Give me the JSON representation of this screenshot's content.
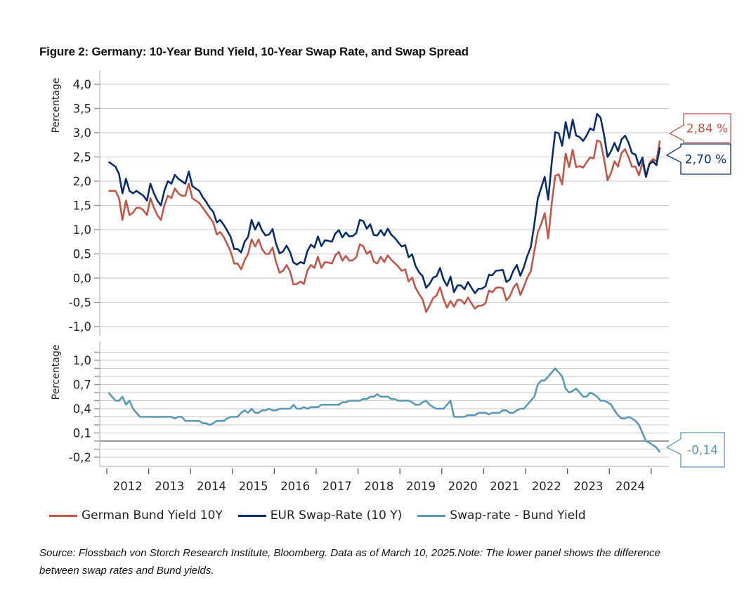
{
  "title": "Figure 2: Germany: 10-Year Bund Yield, 10-Year Swap Rate, and Swap Spread",
  "source": "Source: Flossbach von Storch Research Institute, Bloomberg. Data as of March 10, 2025.Note: The lower panel shows the difference between swap rates and Bund yields.",
  "colors": {
    "bund": "#c0574a",
    "swap": "#0b2d6a",
    "spread": "#5b98b2"
  },
  "chart_data": [
    {
      "type": "line",
      "panel": "upper",
      "ylabel": "Percentage",
      "ylim": [
        -1.0,
        4.0
      ],
      "yticks": [
        "4,0",
        "3,5",
        "3,0",
        "2,5",
        "2,0",
        "1,5",
        "1,0",
        "0,5",
        "0,0",
        "-0,5",
        "-1,0"
      ],
      "ytick_values": [
        4.0,
        3.5,
        3.0,
        2.5,
        2.0,
        1.5,
        1.0,
        0.5,
        0.0,
        -0.5,
        -1.0
      ],
      "grid": true,
      "x_start": "2012-01",
      "x_step": "month",
      "series": [
        {
          "name": "German Bund Yield 10Y",
          "color_key": "bund",
          "end_label": "2,84 %",
          "values": [
            1.8,
            1.8,
            1.8,
            1.65,
            1.2,
            1.6,
            1.3,
            1.35,
            1.45,
            1.45,
            1.4,
            1.3,
            1.65,
            1.45,
            1.3,
            1.2,
            1.5,
            1.7,
            1.65,
            1.85,
            1.75,
            1.7,
            1.7,
            1.95,
            1.65,
            1.6,
            1.55,
            1.45,
            1.35,
            1.25,
            1.15,
            0.9,
            0.95,
            0.85,
            0.7,
            0.55,
            0.3,
            0.3,
            0.18,
            0.37,
            0.5,
            0.8,
            0.65,
            0.8,
            0.6,
            0.5,
            0.5,
            0.63,
            0.33,
            0.11,
            0.15,
            0.27,
            0.14,
            -0.13,
            -0.12,
            -0.07,
            -0.12,
            0.16,
            0.27,
            0.21,
            0.44,
            0.21,
            0.33,
            0.32,
            0.3,
            0.47,
            0.54,
            0.36,
            0.46,
            0.36,
            0.37,
            0.43,
            0.7,
            0.66,
            0.5,
            0.56,
            0.34,
            0.3,
            0.44,
            0.33,
            0.47,
            0.38,
            0.31,
            0.24,
            0.15,
            0.18,
            -0.07,
            0.01,
            -0.2,
            -0.33,
            -0.44,
            -0.7,
            -0.57,
            -0.41,
            -0.36,
            -0.19,
            -0.43,
            -0.61,
            -0.47,
            -0.59,
            -0.45,
            -0.45,
            -0.53,
            -0.4,
            -0.52,
            -0.63,
            -0.57,
            -0.57,
            -0.52,
            -0.26,
            -0.29,
            -0.2,
            -0.19,
            -0.21,
            -0.46,
            -0.38,
            -0.2,
            -0.11,
            -0.35,
            -0.18,
            0.01,
            0.14,
            0.55,
            0.94,
            1.12,
            1.34,
            0.82,
            1.54,
            2.11,
            2.14,
            1.93,
            2.57,
            2.29,
            2.65,
            2.29,
            2.31,
            2.28,
            2.39,
            2.49,
            2.47,
            2.84,
            2.81,
            2.45,
            2.02,
            2.17,
            2.41,
            2.3,
            2.58,
            2.66,
            2.5,
            2.3,
            2.3,
            2.12,
            2.39,
            2.09,
            2.37,
            2.46,
            2.41,
            2.84
          ]
        },
        {
          "name": "EUR Swap-Rate (10 Y)",
          "color_key": "swap",
          "end_label": "2,70 %",
          "values": [
            2.4,
            2.35,
            2.3,
            2.15,
            1.75,
            2.05,
            1.8,
            1.75,
            1.8,
            1.75,
            1.7,
            1.6,
            1.95,
            1.75,
            1.6,
            1.5,
            1.8,
            2.0,
            1.95,
            2.13,
            2.05,
            2.0,
            1.95,
            2.2,
            1.9,
            1.85,
            1.8,
            1.67,
            1.57,
            1.45,
            1.37,
            1.15,
            1.2,
            1.1,
            0.98,
            0.85,
            0.6,
            0.6,
            0.53,
            0.75,
            0.85,
            1.2,
            1.0,
            1.15,
            0.98,
            0.88,
            0.9,
            1.01,
            0.71,
            0.51,
            0.55,
            0.67,
            0.54,
            0.32,
            0.28,
            0.33,
            0.3,
            0.56,
            0.69,
            0.63,
            0.86,
            0.66,
            0.78,
            0.77,
            0.75,
            0.92,
            0.99,
            0.84,
            0.94,
            0.86,
            0.87,
            0.93,
            1.2,
            1.18,
            1.02,
            1.11,
            0.89,
            0.88,
            0.99,
            0.88,
            1.02,
            0.9,
            0.83,
            0.74,
            0.65,
            0.68,
            0.43,
            0.49,
            0.25,
            0.12,
            0.04,
            -0.2,
            -0.12,
            0.01,
            0.04,
            0.21,
            -0.03,
            -0.16,
            0.03,
            -0.29,
            -0.15,
            -0.15,
            -0.23,
            -0.08,
            -0.2,
            -0.31,
            -0.22,
            -0.22,
            -0.17,
            0.07,
            0.06,
            0.15,
            0.16,
            0.17,
            -0.08,
            -0.03,
            0.15,
            0.27,
            0.05,
            0.22,
            0.46,
            0.64,
            1.1,
            1.64,
            1.87,
            2.09,
            1.62,
            2.39,
            3.01,
            2.99,
            2.73,
            3.22,
            2.89,
            3.27,
            2.94,
            2.91,
            2.83,
            2.94,
            3.09,
            3.05,
            3.39,
            3.31,
            2.95,
            2.5,
            2.62,
            2.79,
            2.62,
            2.86,
            2.94,
            2.8,
            2.58,
            2.55,
            2.32,
            2.49,
            2.09,
            2.35,
            2.41,
            2.33,
            2.7
          ]
        }
      ]
    },
    {
      "type": "line",
      "panel": "lower",
      "ylabel": "Percentage",
      "ylim": [
        -0.3,
        1.2
      ],
      "yticks": [
        "1,0",
        "0,7",
        "0,4",
        "0,1",
        "-0,2"
      ],
      "ytick_values": [
        1.0,
        0.7,
        0.4,
        0.1,
        -0.2
      ],
      "grid": true,
      "x_start": "2012-01",
      "x_step": "month",
      "series": [
        {
          "name": "Swap-rate - Bund Yield",
          "color_key": "spread",
          "end_label": "-0,14",
          "values": [
            0.6,
            0.55,
            0.5,
            0.5,
            0.55,
            0.45,
            0.5,
            0.4,
            0.35,
            0.3,
            0.3,
            0.3,
            0.3,
            0.3,
            0.3,
            0.3,
            0.3,
            0.3,
            0.3,
            0.28,
            0.3,
            0.3,
            0.25,
            0.25,
            0.25,
            0.25,
            0.25,
            0.22,
            0.22,
            0.2,
            0.22,
            0.25,
            0.25,
            0.25,
            0.28,
            0.3,
            0.3,
            0.3,
            0.35,
            0.38,
            0.35,
            0.4,
            0.35,
            0.35,
            0.38,
            0.38,
            0.4,
            0.38,
            0.38,
            0.4,
            0.4,
            0.4,
            0.4,
            0.45,
            0.4,
            0.4,
            0.42,
            0.4,
            0.42,
            0.42,
            0.42,
            0.45,
            0.45,
            0.45,
            0.45,
            0.45,
            0.45,
            0.48,
            0.48,
            0.5,
            0.5,
            0.5,
            0.5,
            0.52,
            0.52,
            0.55,
            0.55,
            0.58,
            0.55,
            0.55,
            0.55,
            0.52,
            0.52,
            0.5,
            0.5,
            0.5,
            0.5,
            0.48,
            0.45,
            0.45,
            0.48,
            0.5,
            0.45,
            0.42,
            0.4,
            0.4,
            0.4,
            0.45,
            0.5,
            0.3,
            0.3,
            0.3,
            0.3,
            0.32,
            0.32,
            0.32,
            0.35,
            0.35,
            0.35,
            0.33,
            0.35,
            0.35,
            0.35,
            0.38,
            0.38,
            0.35,
            0.35,
            0.38,
            0.4,
            0.4,
            0.45,
            0.5,
            0.55,
            0.7,
            0.75,
            0.75,
            0.8,
            0.85,
            0.9,
            0.85,
            0.8,
            0.65,
            0.6,
            0.62,
            0.65,
            0.6,
            0.55,
            0.55,
            0.6,
            0.58,
            0.55,
            0.5,
            0.5,
            0.48,
            0.45,
            0.38,
            0.32,
            0.28,
            0.28,
            0.3,
            0.28,
            0.25,
            0.2,
            0.1,
            0.0,
            -0.02,
            -0.05,
            -0.08,
            -0.14
          ]
        }
      ]
    }
  ],
  "x_axis": {
    "tick_labels": [
      "2012",
      "2013",
      "2014",
      "2015",
      "2016",
      "2017",
      "2018",
      "2019",
      "2020",
      "2021",
      "2022",
      "2023",
      "2024"
    ]
  },
  "legend": [
    {
      "label": "German Bund Yield 10Y",
      "color_key": "bund"
    },
    {
      "label": "EUR Swap-Rate (10 Y)",
      "color_key": "swap"
    },
    {
      "label": "Swap-rate - Bund Yield",
      "color_key": "spread"
    }
  ]
}
